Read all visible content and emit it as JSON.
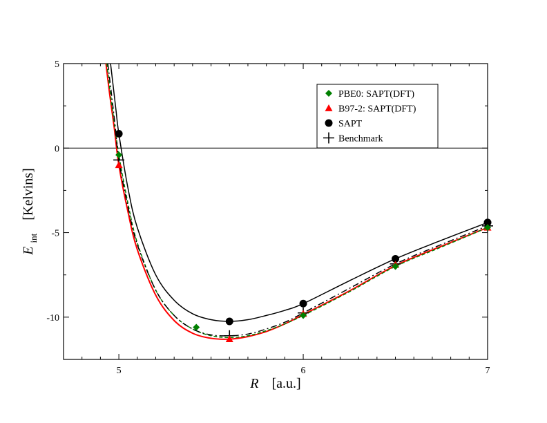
{
  "chart_data": {
    "type": "line",
    "xlabel": {
      "symbol": "R",
      "unit": "[a.u.]"
    },
    "ylabel": {
      "symbol": "E",
      "subscript": "int",
      "unit": "[Kelvins]"
    },
    "xlim": [
      4.7,
      7.0
    ],
    "ylim": [
      -12.5,
      5
    ],
    "xticks": [
      5,
      6,
      7
    ],
    "yticks": [
      5,
      0,
      -5,
      -10
    ],
    "xtick_labels": [
      "5",
      "6",
      "7"
    ],
    "ytick_labels": [
      "5",
      "0",
      "-5",
      "-10"
    ],
    "zero_line": true,
    "grid": false,
    "legend_position": "top-right",
    "series": [
      {
        "name": "PBE0: SAPT(DFT)",
        "color": "#008000",
        "marker": "diamond",
        "points": [
          [
            5.0,
            -0.4
          ],
          [
            5.42,
            -10.6
          ],
          [
            6.0,
            -9.9
          ],
          [
            6.5,
            -7.0
          ],
          [
            7.0,
            -4.7
          ]
        ],
        "curve": [
          [
            4.935,
            5
          ],
          [
            4.95,
            3.6
          ],
          [
            4.97,
            1.9
          ],
          [
            5.0,
            -0.4
          ],
          [
            5.05,
            -3.3
          ],
          [
            5.1,
            -5.6
          ],
          [
            5.2,
            -8.4
          ],
          [
            5.3,
            -9.9
          ],
          [
            5.4,
            -10.7
          ],
          [
            5.5,
            -11.1
          ],
          [
            5.6,
            -11.2
          ],
          [
            5.7,
            -11.1
          ],
          [
            5.8,
            -10.8
          ],
          [
            5.9,
            -10.4
          ],
          [
            6.0,
            -9.9
          ],
          [
            6.25,
            -8.5
          ],
          [
            6.5,
            -7.0
          ],
          [
            6.75,
            -5.85
          ],
          [
            7.0,
            -4.7
          ]
        ]
      },
      {
        "name": "B97-2: SAPT(DFT)",
        "color": "#ff0000",
        "marker": "triangle",
        "points": [
          [
            5.0,
            -1.0
          ],
          [
            5.6,
            -11.3
          ],
          [
            6.0,
            -9.8
          ],
          [
            6.5,
            -6.9
          ],
          [
            7.0,
            -4.7
          ]
        ],
        "curve": [
          [
            4.93,
            5
          ],
          [
            4.95,
            3.2
          ],
          [
            4.975,
            1.2
          ],
          [
            5.0,
            -1.0
          ],
          [
            5.05,
            -3.8
          ],
          [
            5.1,
            -6.0
          ],
          [
            5.2,
            -8.7
          ],
          [
            5.3,
            -10.2
          ],
          [
            5.4,
            -10.95
          ],
          [
            5.5,
            -11.25
          ],
          [
            5.6,
            -11.3
          ],
          [
            5.7,
            -11.15
          ],
          [
            5.8,
            -10.85
          ],
          [
            5.9,
            -10.4
          ],
          [
            6.0,
            -9.85
          ],
          [
            6.25,
            -8.45
          ],
          [
            6.5,
            -6.95
          ],
          [
            6.75,
            -5.8
          ],
          [
            7.0,
            -4.7
          ]
        ]
      },
      {
        "name": "SAPT",
        "color": "#000000",
        "marker": "circle",
        "points": [
          [
            5.0,
            0.85
          ],
          [
            5.6,
            -10.25
          ],
          [
            6.0,
            -9.2
          ],
          [
            6.5,
            -6.55
          ],
          [
            7.0,
            -4.4
          ]
        ],
        "curve": [
          [
            4.955,
            5
          ],
          [
            4.97,
            3.6
          ],
          [
            4.985,
            2.2
          ],
          [
            5.0,
            0.85
          ],
          [
            5.05,
            -2.4
          ],
          [
            5.1,
            -4.7
          ],
          [
            5.2,
            -7.5
          ],
          [
            5.3,
            -9.0
          ],
          [
            5.4,
            -9.8
          ],
          [
            5.5,
            -10.15
          ],
          [
            5.6,
            -10.25
          ],
          [
            5.7,
            -10.15
          ],
          [
            5.8,
            -9.9
          ],
          [
            5.9,
            -9.6
          ],
          [
            6.0,
            -9.2
          ],
          [
            6.25,
            -7.85
          ],
          [
            6.5,
            -6.55
          ],
          [
            6.75,
            -5.45
          ],
          [
            7.0,
            -4.4
          ]
        ]
      },
      {
        "name": "Benchmark",
        "color": "#000000",
        "marker": "plus",
        "dashed": true,
        "points": [
          [
            5.0,
            -0.7
          ],
          [
            5.6,
            -11.1
          ],
          [
            6.0,
            -9.75
          ],
          [
            6.5,
            -6.85
          ],
          [
            7.0,
            -4.6
          ]
        ],
        "curve": [
          [
            4.94,
            5
          ],
          [
            4.96,
            3.2
          ],
          [
            4.98,
            1.3
          ],
          [
            5.0,
            -0.7
          ],
          [
            5.05,
            -3.5
          ],
          [
            5.1,
            -5.7
          ],
          [
            5.2,
            -8.4
          ],
          [
            5.3,
            -9.9
          ],
          [
            5.4,
            -10.7
          ],
          [
            5.5,
            -11.05
          ],
          [
            5.6,
            -11.1
          ],
          [
            5.7,
            -11.0
          ],
          [
            5.8,
            -10.7
          ],
          [
            5.9,
            -10.3
          ],
          [
            6.0,
            -9.75
          ],
          [
            6.25,
            -8.3
          ],
          [
            6.5,
            -6.85
          ],
          [
            6.75,
            -5.7
          ],
          [
            7.0,
            -4.6
          ]
        ]
      }
    ]
  }
}
